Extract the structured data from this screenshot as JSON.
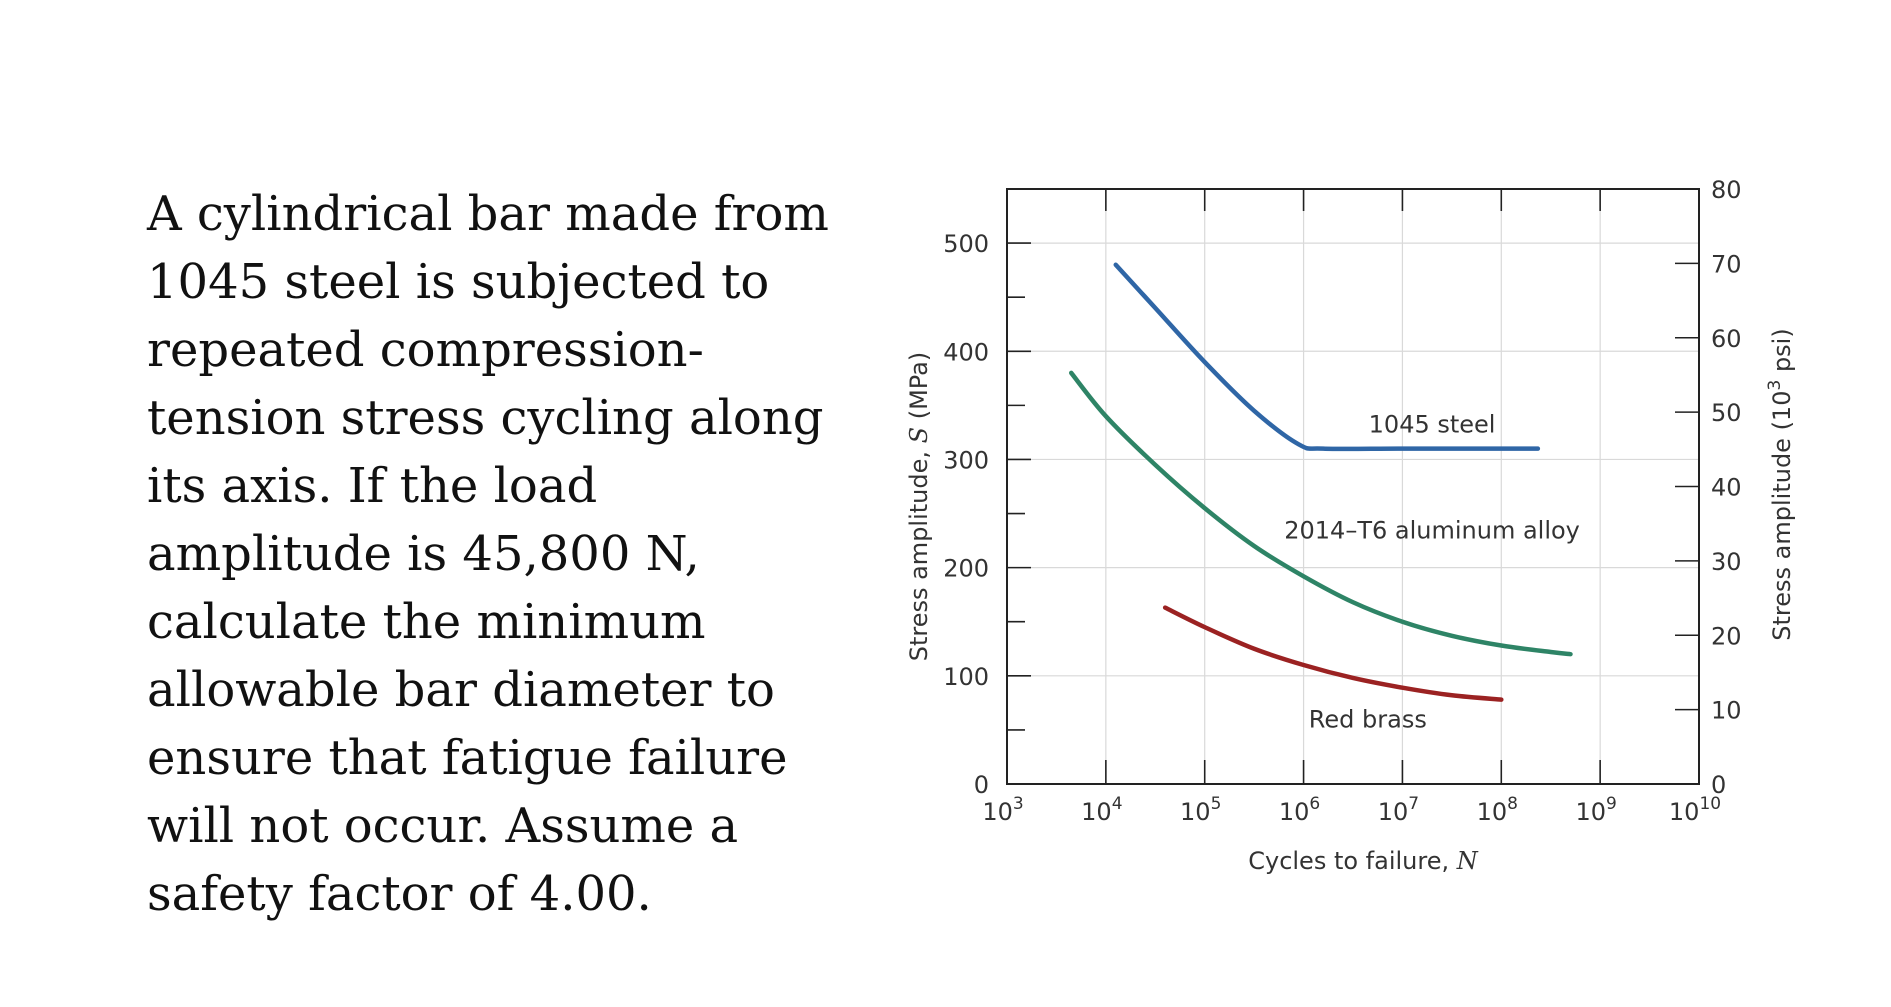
{
  "problem": {
    "lines": [
      "A cylindrical bar made from",
      "1045 steel is subjected to",
      "repeated compression-",
      "tension stress cycling along",
      "its axis.  If the load",
      "amplitude is 45,800 N,",
      "calculate the minimum",
      "allowable bar diameter to",
      "ensure that fatigue failure",
      "will not occur.  Assume a",
      "safety factor of 4.00."
    ]
  },
  "chart_data": {
    "type": "line",
    "xscale": "log",
    "x_exponent_range": [
      3,
      10
    ],
    "xlabel": {
      "text": "Cycles to failure, ",
      "var": "N"
    },
    "ylabel_left": {
      "text": "Stress amplitude, ",
      "var": "S",
      "unit": " (MPa)"
    },
    "ylabel_right": {
      "prefix": "Stress amplitude (10",
      "sup": "3",
      "suffix": " psi)"
    },
    "ylim_left": [
      0,
      550
    ],
    "ylim_right": [
      0,
      80
    ],
    "yticks_left": [
      0,
      100,
      200,
      300,
      400,
      500
    ],
    "yticks_right": [
      0,
      10,
      20,
      30,
      40,
      50,
      60,
      70,
      80
    ],
    "xticks": [
      {
        "base": "10",
        "exp": "3"
      },
      {
        "base": "10",
        "exp": "4"
      },
      {
        "base": "10",
        "exp": "5"
      },
      {
        "base": "10",
        "exp": "6"
      },
      {
        "base": "10",
        "exp": "7"
      },
      {
        "base": "10",
        "exp": "8"
      },
      {
        "base": "10",
        "exp": "9"
      },
      {
        "base": "10",
        "exp": "10"
      }
    ],
    "grid": true,
    "series": [
      {
        "name": "1045 steel",
        "color": "#2f66a6",
        "label_pos": [
          7.3,
          325
        ],
        "points": [
          [
            4.1,
            480
          ],
          [
            4.5,
            440
          ],
          [
            5.0,
            390
          ],
          [
            5.5,
            345
          ],
          [
            5.95,
            314
          ],
          [
            6.2,
            310
          ],
          [
            7.0,
            310
          ],
          [
            8.0,
            310
          ],
          [
            8.37,
            310
          ]
        ]
      },
      {
        "name": "2014–T6 aluminum alloy",
        "color": "#2e8466",
        "label_pos": [
          7.3,
          227
        ],
        "points": [
          [
            3.65,
            380
          ],
          [
            4.0,
            340
          ],
          [
            4.5,
            295
          ],
          [
            5.0,
            255
          ],
          [
            5.5,
            220
          ],
          [
            6.0,
            192
          ],
          [
            6.5,
            168
          ],
          [
            7.0,
            150
          ],
          [
            7.5,
            137
          ],
          [
            8.0,
            128
          ],
          [
            8.5,
            122
          ],
          [
            8.7,
            120
          ]
        ]
      },
      {
        "name": "Red brass",
        "color": "#9b2222",
        "label_pos": [
          6.65,
          52
        ],
        "points": [
          [
            4.6,
            163
          ],
          [
            5.0,
            145
          ],
          [
            5.5,
            125
          ],
          [
            6.0,
            110
          ],
          [
            6.5,
            98
          ],
          [
            7.0,
            89
          ],
          [
            7.5,
            82
          ],
          [
            8.0,
            78
          ]
        ]
      }
    ]
  }
}
